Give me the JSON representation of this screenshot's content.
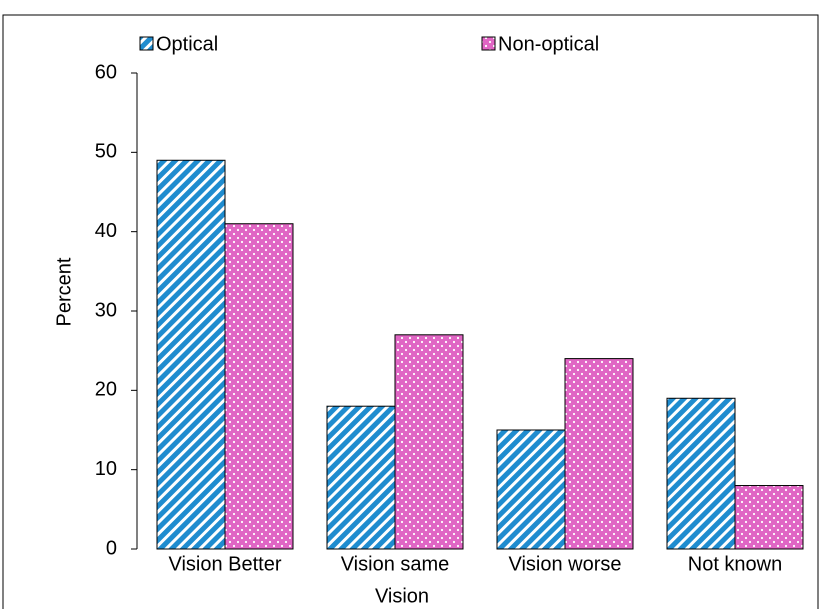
{
  "chart_data": {
    "type": "bar",
    "x_label": "Vision",
    "y_label": "Percent",
    "categories": [
      "Vision Better",
      "Vision same",
      "Vision worse",
      "Not known"
    ],
    "series": [
      {
        "name": "Optical",
        "color": "#1f8ccf",
        "values": [
          49,
          18,
          15,
          19
        ]
      },
      {
        "name": "Non-optical",
        "color": "#e066c4",
        "values": [
          41,
          27,
          24,
          8
        ]
      }
    ],
    "ylim": [
      0,
      60
    ],
    "yticks": [
      0,
      10,
      20,
      30,
      40,
      50,
      60
    ],
    "grid": false
  }
}
